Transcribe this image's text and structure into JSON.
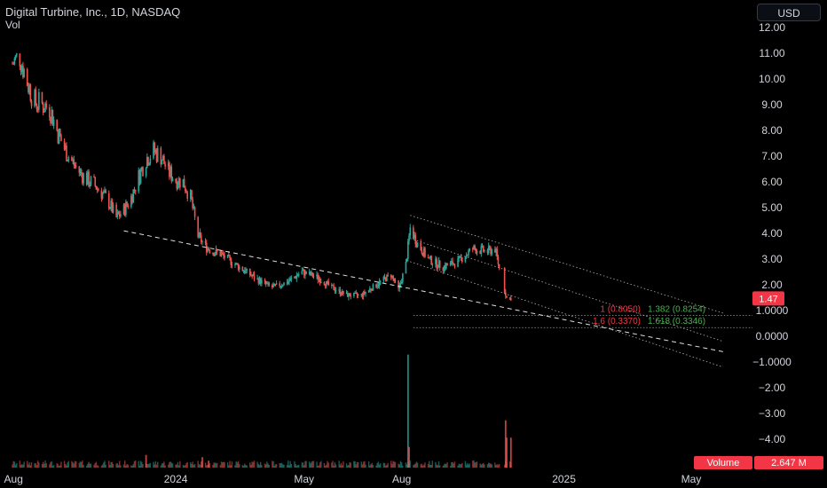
{
  "header": {
    "title": "Digital Turbine, Inc., 1D, NASDAQ",
    "volume_label": "Vol",
    "currency": "USD"
  },
  "colors": {
    "up": "#26a69a",
    "down": "#ef5350",
    "trendline": "#e0e0e0",
    "fib_line": "#9aa0aa",
    "price_badge": "#f23645",
    "background": "#000000"
  },
  "price_badge": {
    "value": 1.47,
    "label": "1.47"
  },
  "volume_badge": {
    "label": "Volume",
    "value": "2.647 M"
  },
  "chart_data": {
    "type": "candlestick",
    "y_ticks": [
      "12.00",
      "11.00",
      "10.00",
      "9.00",
      "8.00",
      "7.00",
      "6.00",
      "5.00",
      "4.00",
      "3.00",
      "2.00",
      "1.0000",
      "0.0000",
      "−1.0000",
      "−2.00",
      "−3.00",
      "−4.00"
    ],
    "y_range": [
      -4.5,
      12.5
    ],
    "x_ticks": [
      "Aug",
      "2024",
      "May",
      "Aug",
      "2025",
      "May"
    ],
    "price_path": [
      [
        "2023-07-31",
        10.6
      ],
      [
        "2023-08-07",
        10.9
      ],
      [
        "2023-08-14",
        9.9
      ],
      [
        "2023-08-21",
        9.1
      ],
      [
        "2023-08-28",
        9.0
      ],
      [
        "2023-09-04",
        8.9
      ],
      [
        "2023-09-11",
        8.0
      ],
      [
        "2023-09-18",
        7.3
      ],
      [
        "2023-09-25",
        6.8
      ],
      [
        "2023-10-02",
        6.4
      ],
      [
        "2023-10-09",
        6.1
      ],
      [
        "2023-10-16",
        5.9
      ],
      [
        "2023-10-23",
        5.6
      ],
      [
        "2023-10-30",
        5.2
      ],
      [
        "2023-11-06",
        4.6
      ],
      [
        "2023-11-13",
        4.9
      ],
      [
        "2023-11-20",
        5.4
      ],
      [
        "2023-11-27",
        6.2
      ],
      [
        "2023-12-04",
        6.9
      ],
      [
        "2023-12-11",
        7.2
      ],
      [
        "2023-12-18",
        7.0
      ],
      [
        "2023-12-25",
        6.4
      ],
      [
        "2024-01-01",
        6.1
      ],
      [
        "2024-01-08",
        6.0
      ],
      [
        "2024-01-15",
        5.4
      ],
      [
        "2024-01-22",
        3.9
      ],
      [
        "2024-01-29",
        3.5
      ],
      [
        "2024-02-05",
        3.3
      ],
      [
        "2024-02-12",
        3.2
      ],
      [
        "2024-02-19",
        3.0
      ],
      [
        "2024-03-04",
        2.6
      ],
      [
        "2024-03-18",
        2.2
      ],
      [
        "2024-04-01",
        1.9
      ],
      [
        "2024-04-15",
        2.1
      ],
      [
        "2024-04-29",
        2.5
      ],
      [
        "2024-05-13",
        2.3
      ],
      [
        "2024-05-27",
        1.9
      ],
      [
        "2024-06-10",
        1.6
      ],
      [
        "2024-06-24",
        1.6
      ],
      [
        "2024-07-08",
        2.0
      ],
      [
        "2024-07-22",
        2.4
      ],
      [
        "2024-07-29",
        1.8
      ],
      [
        "2024-08-05",
        2.8
      ],
      [
        "2024-08-09",
        4.2
      ],
      [
        "2024-08-16",
        3.6
      ],
      [
        "2024-08-26",
        3.0
      ],
      [
        "2024-09-09",
        2.7
      ],
      [
        "2024-09-23",
        2.9
      ],
      [
        "2024-10-07",
        3.4
      ],
      [
        "2024-10-21",
        3.3
      ],
      [
        "2024-10-28",
        3.4
      ],
      [
        "2024-11-05",
        1.9
      ],
      [
        "2024-11-08",
        1.5
      ],
      [
        "2024-11-12",
        1.47
      ]
    ],
    "volume_spikes": [
      [
        "2023-12-04",
        1.1
      ],
      [
        "2024-01-26",
        0.9
      ],
      [
        "2024-02-01",
        0.6
      ],
      [
        "2024-08-07",
        9.8
      ],
      [
        "2024-08-08",
        1.8
      ],
      [
        "2024-11-07",
        4.1
      ],
      [
        "2024-11-08",
        2.6
      ],
      [
        "2024-11-12",
        2.6
      ]
    ],
    "trendline": {
      "start": [
        "2023-11-13",
        4.1
      ],
      "end": [
        "2025-05-31",
        -0.6
      ],
      "style": "dashed"
    },
    "channel": {
      "upper": {
        "start": [
          "2024-08-09",
          4.7
        ],
        "end": [
          "2025-05-31",
          0.9
        ]
      },
      "mid": {
        "start": [
          "2024-08-09",
          3.8
        ],
        "end": [
          "2025-05-31",
          -0.2
        ]
      },
      "lower": {
        "start": [
          "2024-08-09",
          2.9
        ],
        "end": [
          "2025-05-31",
          -1.2
        ]
      },
      "style": "dotted"
    },
    "fib_levels": [
      {
        "label": "1 (0.8050)",
        "value": 0.805,
        "color": "#f23645"
      },
      {
        "label": "1.382 (0.8254)",
        "value": 0.8254,
        "color": "#4caf50"
      },
      {
        "label": "1.6 (0.3370)",
        "value": 0.337,
        "color": "#f23645"
      },
      {
        "label": "1.618 (0.3346)",
        "value": 0.3346,
        "color": "#4caf50"
      }
    ],
    "grid": false
  }
}
